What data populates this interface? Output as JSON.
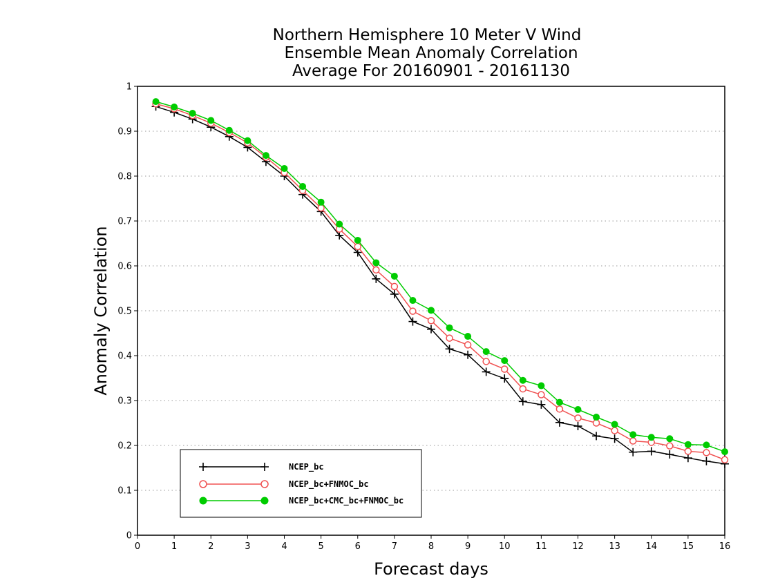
{
  "chart_data": {
    "type": "line",
    "title": [
      "Northern Hemisphere 10 Meter V Wind",
      "Ensemble Mean Anomaly Correlation",
      "Average For 20160901 - 20161130"
    ],
    "xlabel": "Forecast days",
    "ylabel": "Anomaly Correlation",
    "xlim": [
      0,
      16
    ],
    "ylim": [
      0,
      1
    ],
    "x_ticks": [
      0,
      1,
      2,
      3,
      4,
      5,
      6,
      7,
      8,
      9,
      10,
      11,
      12,
      13,
      14,
      15,
      16
    ],
    "y_ticks": [
      0,
      0.1,
      0.2,
      0.3,
      0.4,
      0.5,
      0.6,
      0.7,
      0.8,
      0.9,
      1
    ],
    "y_tick_labels": [
      "0",
      "0.1",
      "0.2",
      "0.3",
      "0.4",
      "0.5",
      "0.6",
      "0.7",
      "0.8",
      "0.9",
      "1"
    ],
    "grid": "horizontal dotted",
    "legend_position": "bottom-left",
    "x": [
      0.5,
      1,
      1.5,
      2,
      2.5,
      3,
      3.5,
      4,
      4.5,
      5,
      5.5,
      6,
      6.5,
      7,
      7.5,
      8,
      8.5,
      9,
      9.5,
      10,
      10.5,
      11,
      11.5,
      12,
      12.5,
      13,
      13.5,
      14,
      14.5,
      15,
      15.5,
      16
    ],
    "series": [
      {
        "name": "NCEP_bc",
        "color": "#000000",
        "marker": "plus",
        "values": [
          0.955,
          0.942,
          0.927,
          0.909,
          0.888,
          0.864,
          0.832,
          0.8,
          0.759,
          0.721,
          0.668,
          0.63,
          0.571,
          0.537,
          0.476,
          0.459,
          0.415,
          0.402,
          0.364,
          0.349,
          0.298,
          0.291,
          0.251,
          0.243,
          0.221,
          0.215,
          0.185,
          0.187,
          0.18,
          0.172,
          0.165,
          0.159
        ]
      },
      {
        "name": "NCEP_bc+FNMOC_bc",
        "color": "#f05050",
        "marker": "open-circle",
        "values": [
          0.961,
          0.95,
          0.935,
          0.918,
          0.897,
          0.874,
          0.842,
          0.808,
          0.768,
          0.729,
          0.682,
          0.643,
          0.591,
          0.554,
          0.499,
          0.478,
          0.439,
          0.424,
          0.387,
          0.37,
          0.326,
          0.313,
          0.281,
          0.261,
          0.25,
          0.233,
          0.21,
          0.207,
          0.199,
          0.187,
          0.184,
          0.168
        ]
      },
      {
        "name": "NCEP_bc+CMC_bc+FNMOC_bc",
        "color": "#00cc00",
        "marker": "filled-circle",
        "values": [
          0.966,
          0.954,
          0.94,
          0.924,
          0.902,
          0.879,
          0.846,
          0.817,
          0.777,
          0.742,
          0.693,
          0.657,
          0.607,
          0.577,
          0.523,
          0.501,
          0.462,
          0.443,
          0.409,
          0.389,
          0.345,
          0.333,
          0.296,
          0.28,
          0.263,
          0.247,
          0.224,
          0.218,
          0.215,
          0.202,
          0.201,
          0.186
        ]
      }
    ]
  }
}
